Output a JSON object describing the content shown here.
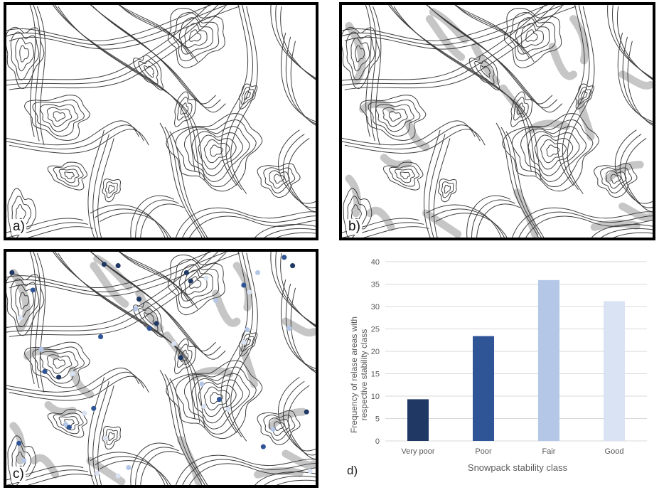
{
  "panels": {
    "a": {
      "label": "a)"
    },
    "b": {
      "label": "b)"
    },
    "c": {
      "label": "c)"
    },
    "d": {
      "label": "d)"
    }
  },
  "colors": {
    "contour": "#3c3c3c",
    "release_area": "#bdbdbd",
    "very_poor": "#1f3864",
    "poor": "#2f5597",
    "fair": "#b4c7e7",
    "good": "#dae3f3",
    "grid": "#d9d9d9",
    "axis_text": "#595959"
  },
  "chart_data": {
    "type": "bar",
    "categories": [
      "Very poor",
      "Poor",
      "Fair",
      "Good"
    ],
    "values": [
      9.3,
      23.4,
      35.9,
      31.2
    ],
    "bar_colors": [
      "#1f3864",
      "#2f5597",
      "#b4c7e7",
      "#dae3f3"
    ],
    "title": "",
    "xlabel": "Snowpack stability class",
    "ylabel": "Frequency of relase areas with respective stability class",
    "ylim": [
      0,
      40
    ],
    "yticks": [
      0,
      5,
      10,
      15,
      20,
      25,
      30,
      35,
      40
    ],
    "grid": true,
    "legend": "none"
  }
}
